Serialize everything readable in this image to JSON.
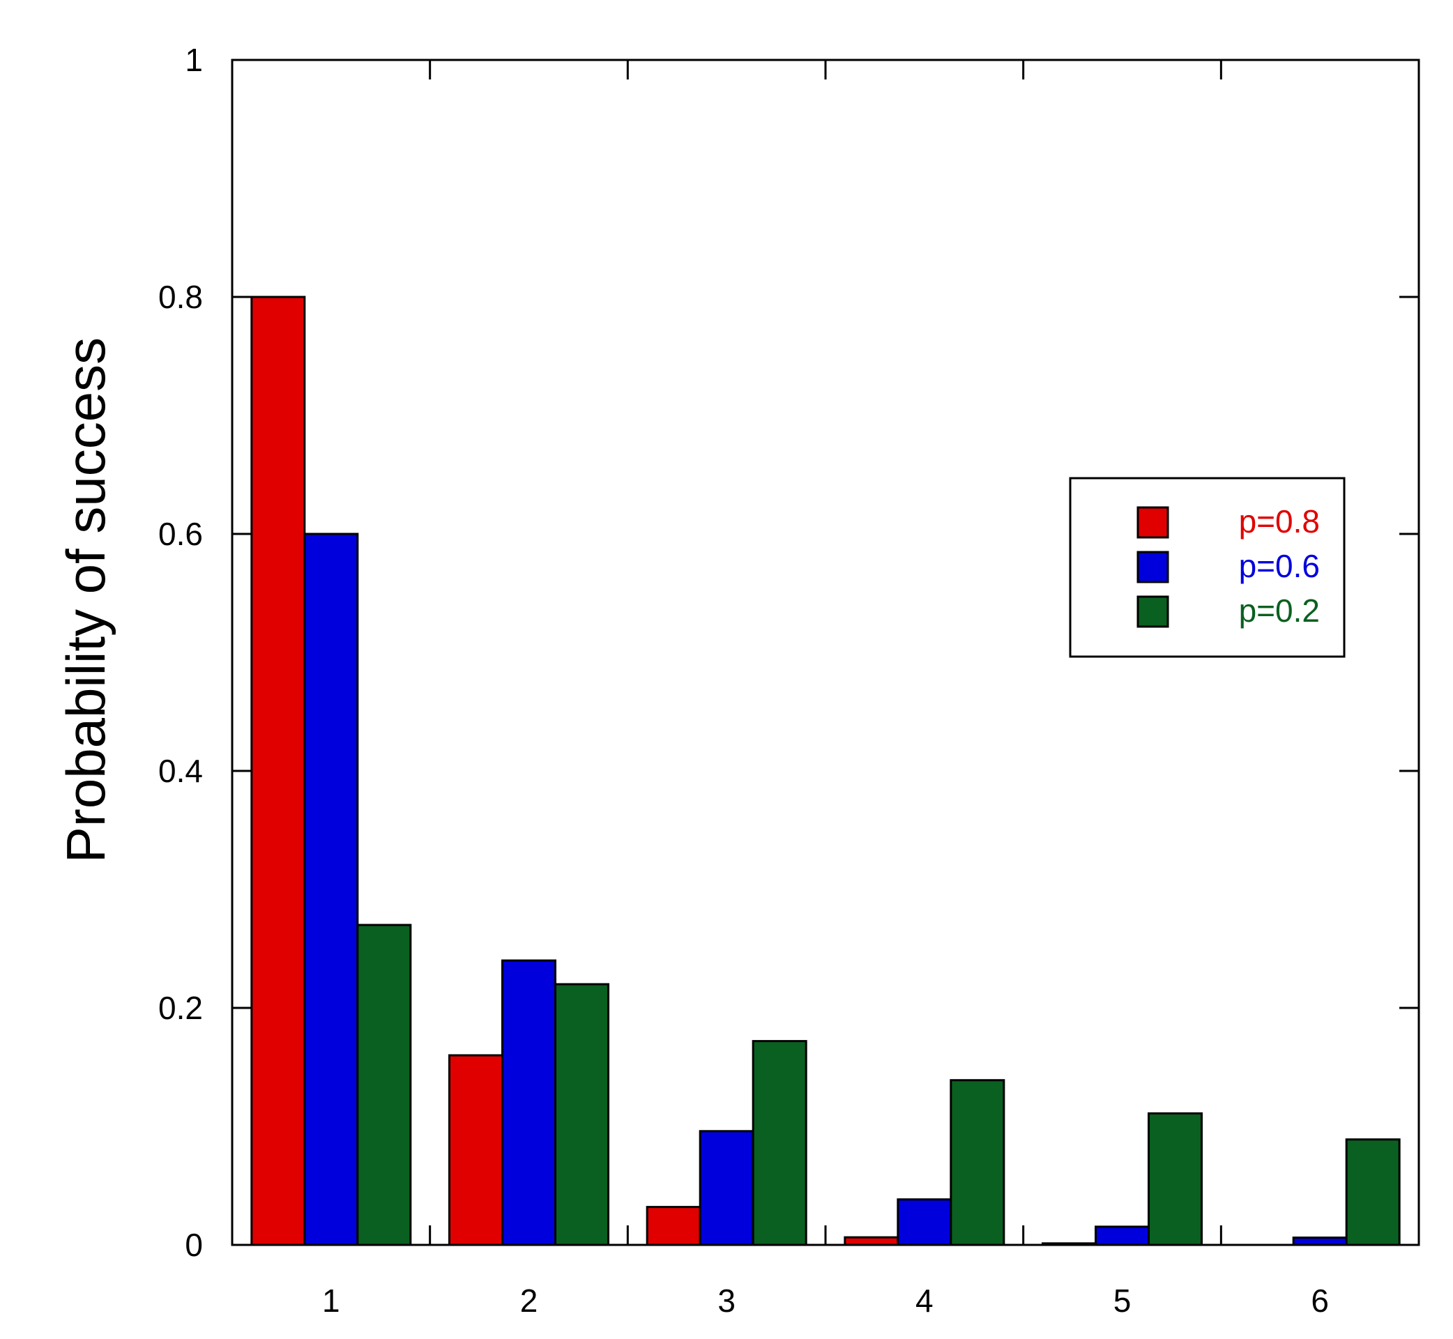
{
  "chart_data": {
    "type": "bar",
    "title": "",
    "xlabel": "",
    "ylabel": "Probability of success",
    "categories": [
      "1",
      "2",
      "3",
      "4",
      "5",
      "6"
    ],
    "ylim": [
      0,
      1
    ],
    "yticks": [
      "0",
      "0.2",
      "0.4",
      "0.6",
      "0.8",
      "1"
    ],
    "grid": false,
    "legend_position": "right",
    "series": [
      {
        "name": "p=0.8",
        "color": "#e00000",
        "values": [
          0.8,
          0.16,
          0.032,
          0.0064,
          0.00128,
          0.000256
        ]
      },
      {
        "name": "p=0.6",
        "color": "#0000dd",
        "values": [
          0.6,
          0.24,
          0.096,
          0.0384,
          0.01536,
          0.006144
        ]
      },
      {
        "name": "p=0.2",
        "color": "#0a6020",
        "values": [
          0.27,
          0.22,
          0.172,
          0.139,
          0.111,
          0.089
        ]
      }
    ]
  }
}
